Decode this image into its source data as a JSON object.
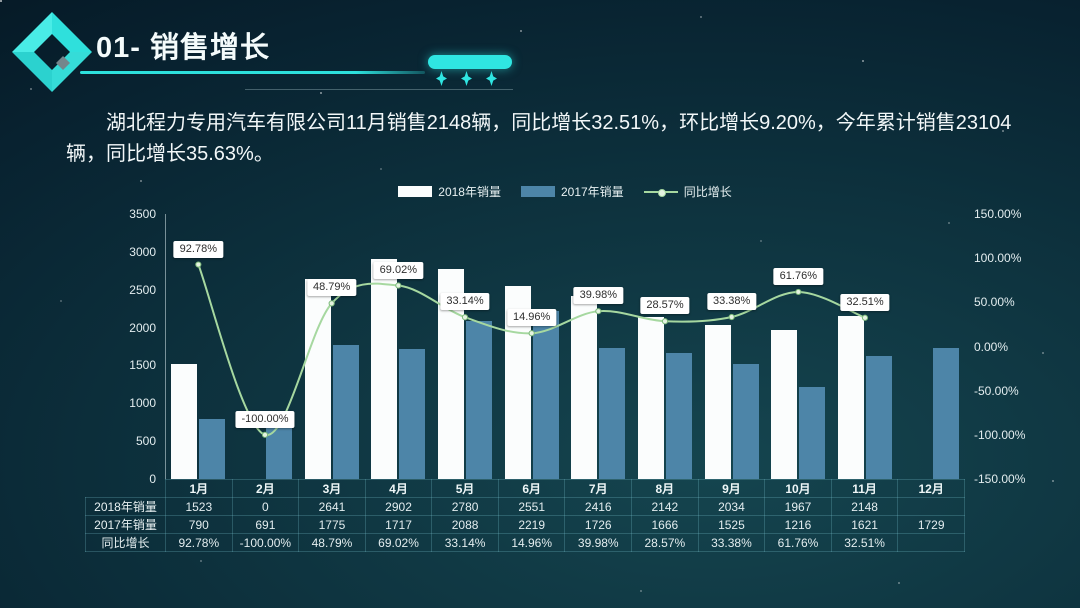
{
  "slide": {
    "title": "01- 销售增长",
    "paragraph": "湖北程力专用汽车有限公司11月销售2148辆，同比增长32.51%，环比增长9.20%，今年累计销售23104辆，同比增长35.63%。"
  },
  "colors": {
    "accent_cyan": "#2fe6e2",
    "bar_2018": "#fbfdfd",
    "bar_2017": "#4d85a8",
    "line_growth": "#a6d8a0",
    "line_dot_fill": "#e4f3e1",
    "line_dot_stroke": "#7cb97a",
    "background_dark": "#041521",
    "background_mid": "#15454f"
  },
  "chart_data": {
    "type": "bar",
    "subtype": "bar+line combo",
    "categories": [
      "1月",
      "2月",
      "3月",
      "4月",
      "5月",
      "6月",
      "7月",
      "8月",
      "9月",
      "10月",
      "11月",
      "12月"
    ],
    "series": [
      {
        "name": "2018年销量",
        "type": "bar",
        "color": "#fbfdfd",
        "values": [
          1523,
          0,
          2641,
          2902,
          2780,
          2551,
          2416,
          2142,
          2034,
          1967,
          2148,
          null
        ]
      },
      {
        "name": "2017年销量",
        "type": "bar",
        "color": "#4d85a8",
        "values": [
          790,
          691,
          1775,
          1717,
          2088,
          2219,
          1726,
          1666,
          1525,
          1216,
          1621,
          1729
        ]
      },
      {
        "name": "同比增长",
        "type": "line",
        "color": "#a6d8a0",
        "axis": "right",
        "values": [
          92.78,
          -100.0,
          48.79,
          69.02,
          33.14,
          14.96,
          39.98,
          28.57,
          33.38,
          61.76,
          32.51,
          null
        ],
        "labels": [
          "92.78%",
          "-100.00%",
          "48.79%",
          "69.02%",
          "33.14%",
          "14.96%",
          "39.98%",
          "28.57%",
          "33.38%",
          "61.76%",
          "32.51%",
          ""
        ]
      }
    ],
    "left_axis": {
      "min": 0,
      "max": 3500,
      "ticks": [
        "3500",
        "3000",
        "2500",
        "2000",
        "1500",
        "1000",
        "500",
        "0"
      ]
    },
    "right_axis": {
      "min": -150,
      "max": 150,
      "ticks": [
        "150.00%",
        "100.00%",
        "50.00%",
        "0.00%",
        "-50.00%",
        "-100.00%",
        "-150.00%"
      ]
    },
    "legend": [
      "2018年销量",
      "2017年销量",
      "同比增长"
    ],
    "legend_position": "top-center",
    "grid": false,
    "title": "",
    "xlabel": "",
    "ylabel": ""
  },
  "table": {
    "row_labels": [
      "2018年销量",
      "2017年销量",
      "同比增长"
    ],
    "columns": [
      "1月",
      "2月",
      "3月",
      "4月",
      "5月",
      "6月",
      "7月",
      "8月",
      "9月",
      "10月",
      "11月",
      "12月"
    ],
    "rows": [
      [
        "1523",
        "0",
        "2641",
        "2902",
        "2780",
        "2551",
        "2416",
        "2142",
        "2034",
        "1967",
        "2148",
        ""
      ],
      [
        "790",
        "691",
        "1775",
        "1717",
        "2088",
        "2219",
        "1726",
        "1666",
        "1525",
        "1216",
        "1621",
        "1729"
      ],
      [
        "92.78%",
        "-100.00%",
        "48.79%",
        "69.02%",
        "33.14%",
        "14.96%",
        "39.98%",
        "28.57%",
        "33.38%",
        "61.76%",
        "32.51%",
        ""
      ]
    ]
  }
}
